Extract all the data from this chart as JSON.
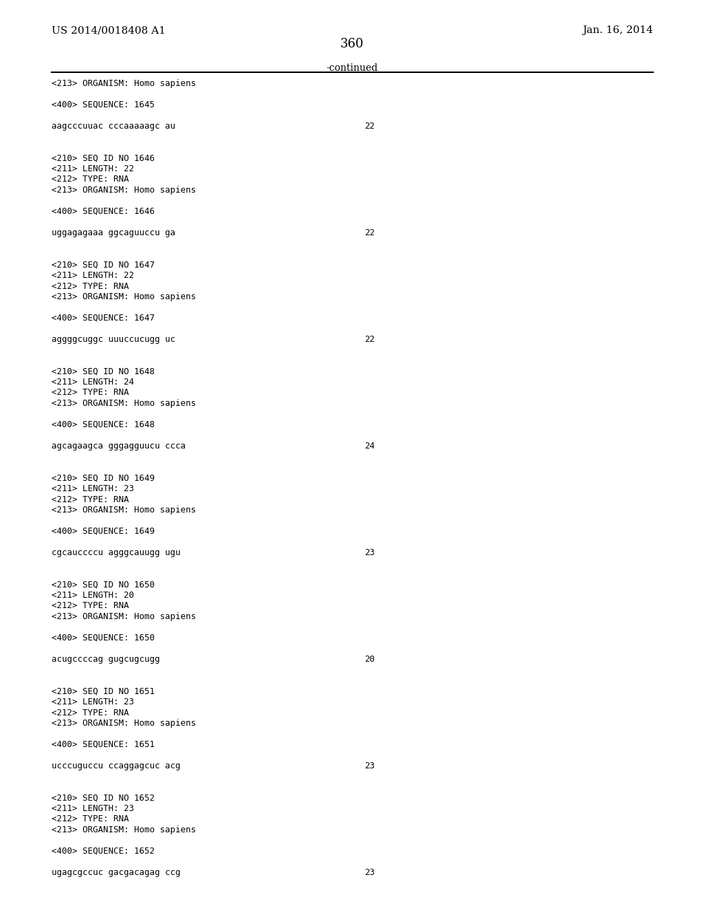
{
  "header_left": "US 2014/0018408 A1",
  "header_right": "Jan. 16, 2014",
  "page_number": "360",
  "continued_label": "-continued",
  "background_color": "#ffffff",
  "text_color": "#000000",
  "font_size": 9.5,
  "mono_font_size": 9.0,
  "lines": [
    {
      "type": "meta",
      "text": "<213> ORGANISM: Homo sapiens"
    },
    {
      "type": "blank"
    },
    {
      "type": "meta",
      "text": "<400> SEQUENCE: 1645"
    },
    {
      "type": "blank"
    },
    {
      "type": "seq",
      "text": "aagcccuuac cccaaaaagc au",
      "num": "22"
    },
    {
      "type": "blank"
    },
    {
      "type": "blank"
    },
    {
      "type": "meta",
      "text": "<210> SEQ ID NO 1646"
    },
    {
      "type": "meta",
      "text": "<211> LENGTH: 22"
    },
    {
      "type": "meta",
      "text": "<212> TYPE: RNA"
    },
    {
      "type": "meta",
      "text": "<213> ORGANISM: Homo sapiens"
    },
    {
      "type": "blank"
    },
    {
      "type": "meta",
      "text": "<400> SEQUENCE: 1646"
    },
    {
      "type": "blank"
    },
    {
      "type": "seq",
      "text": "uggagagaaa ggcaguuccu ga",
      "num": "22"
    },
    {
      "type": "blank"
    },
    {
      "type": "blank"
    },
    {
      "type": "meta",
      "text": "<210> SEQ ID NO 1647"
    },
    {
      "type": "meta",
      "text": "<211> LENGTH: 22"
    },
    {
      "type": "meta",
      "text": "<212> TYPE: RNA"
    },
    {
      "type": "meta",
      "text": "<213> ORGANISM: Homo sapiens"
    },
    {
      "type": "blank"
    },
    {
      "type": "meta",
      "text": "<400> SEQUENCE: 1647"
    },
    {
      "type": "blank"
    },
    {
      "type": "seq",
      "text": "aggggcuggc uuuccucugg uc",
      "num": "22"
    },
    {
      "type": "blank"
    },
    {
      "type": "blank"
    },
    {
      "type": "meta",
      "text": "<210> SEQ ID NO 1648"
    },
    {
      "type": "meta",
      "text": "<211> LENGTH: 24"
    },
    {
      "type": "meta",
      "text": "<212> TYPE: RNA"
    },
    {
      "type": "meta",
      "text": "<213> ORGANISM: Homo sapiens"
    },
    {
      "type": "blank"
    },
    {
      "type": "meta",
      "text": "<400> SEQUENCE: 1648"
    },
    {
      "type": "blank"
    },
    {
      "type": "seq",
      "text": "agcagaagca gggagguucu ccca",
      "num": "24"
    },
    {
      "type": "blank"
    },
    {
      "type": "blank"
    },
    {
      "type": "meta",
      "text": "<210> SEQ ID NO 1649"
    },
    {
      "type": "meta",
      "text": "<211> LENGTH: 23"
    },
    {
      "type": "meta",
      "text": "<212> TYPE: RNA"
    },
    {
      "type": "meta",
      "text": "<213> ORGANISM: Homo sapiens"
    },
    {
      "type": "blank"
    },
    {
      "type": "meta",
      "text": "<400> SEQUENCE: 1649"
    },
    {
      "type": "blank"
    },
    {
      "type": "seq",
      "text": "cgcauccccu agggcauugg ugu",
      "num": "23"
    },
    {
      "type": "blank"
    },
    {
      "type": "blank"
    },
    {
      "type": "meta",
      "text": "<210> SEQ ID NO 1650"
    },
    {
      "type": "meta",
      "text": "<211> LENGTH: 20"
    },
    {
      "type": "meta",
      "text": "<212> TYPE: RNA"
    },
    {
      "type": "meta",
      "text": "<213> ORGANISM: Homo sapiens"
    },
    {
      "type": "blank"
    },
    {
      "type": "meta",
      "text": "<400> SEQUENCE: 1650"
    },
    {
      "type": "blank"
    },
    {
      "type": "seq",
      "text": "acugccccag gugcugcugg",
      "num": "20"
    },
    {
      "type": "blank"
    },
    {
      "type": "blank"
    },
    {
      "type": "meta",
      "text": "<210> SEQ ID NO 1651"
    },
    {
      "type": "meta",
      "text": "<211> LENGTH: 23"
    },
    {
      "type": "meta",
      "text": "<212> TYPE: RNA"
    },
    {
      "type": "meta",
      "text": "<213> ORGANISM: Homo sapiens"
    },
    {
      "type": "blank"
    },
    {
      "type": "meta",
      "text": "<400> SEQUENCE: 1651"
    },
    {
      "type": "blank"
    },
    {
      "type": "seq",
      "text": "ucccuguccu ccaggagcuc acg",
      "num": "23"
    },
    {
      "type": "blank"
    },
    {
      "type": "blank"
    },
    {
      "type": "meta",
      "text": "<210> SEQ ID NO 1652"
    },
    {
      "type": "meta",
      "text": "<211> LENGTH: 23"
    },
    {
      "type": "meta",
      "text": "<212> TYPE: RNA"
    },
    {
      "type": "meta",
      "text": "<213> ORGANISM: Homo sapiens"
    },
    {
      "type": "blank"
    },
    {
      "type": "meta",
      "text": "<400> SEQUENCE: 1652"
    },
    {
      "type": "blank"
    },
    {
      "type": "seq",
      "text": "ugagcgccuc gacgacagag ccg",
      "num": "23"
    }
  ]
}
